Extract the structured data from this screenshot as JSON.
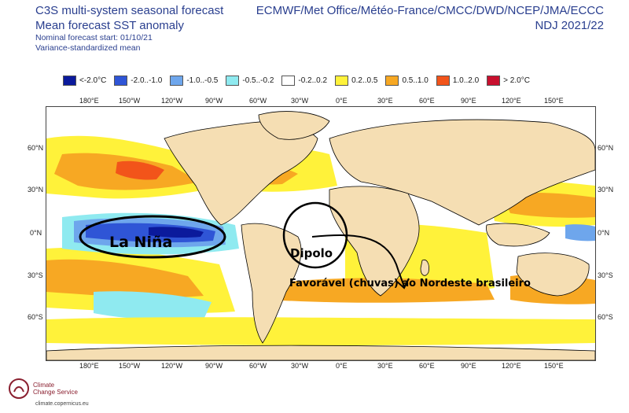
{
  "header": {
    "title_line1": "C3S multi-system seasonal forecast",
    "title_line2": "Mean forecast SST anomaly",
    "nominal_start": "Nominal forecast start: 01/10/21",
    "variance": "Variance-standardized mean",
    "centres": "ECMWF/Met Office/Météo-France/CMCC/DWD/NCEP/JMA/ECCC",
    "period": "NDJ 2021/22"
  },
  "legend": [
    {
      "label": "<-2.0°C",
      "color": "#0b1a9c"
    },
    {
      "label": "-2.0..-1.0",
      "color": "#2f55d6"
    },
    {
      "label": "-1.0..-0.5",
      "color": "#6ea6ec"
    },
    {
      "label": "-0.5..-0.2",
      "color": "#8feaf0"
    },
    {
      "label": "-0.2..0.2",
      "color": "#ffffff"
    },
    {
      "label": "0.2..0.5",
      "color": "#fff23a"
    },
    {
      "label": "0.5..1.0",
      "color": "#f7a823"
    },
    {
      "label": "1.0..2.0",
      "color": "#f2541a"
    },
    {
      "label": "> 2.0°C",
      "color": "#c8102e"
    }
  ],
  "lon_labels": [
    "180°E",
    "150°W",
    "120°W",
    "90°W",
    "60°W",
    "30°W",
    "0°E",
    "30°E",
    "60°E",
    "90°E",
    "120°E",
    "150°E"
  ],
  "lat_labels": [
    "60°N",
    "30°N",
    "0°N",
    "30°S",
    "60°S"
  ],
  "annotations": {
    "la_nina": "La Niña",
    "dipolo": "Dipolo",
    "favoravel": "Favorável (chuvas) ao Nordeste brasileiro"
  },
  "logo": {
    "line1": "Climate",
    "line2": "Change Service",
    "url": "climate.copernicus.eu"
  }
}
